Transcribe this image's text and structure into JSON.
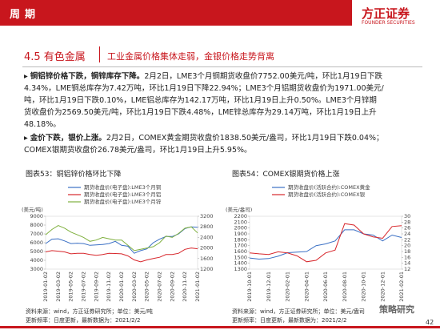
{
  "header": {
    "title": "周期",
    "logo": "方正证券",
    "logo_en": "FOUNDER SECURITIES"
  },
  "section": {
    "number": "4.5 有色金属",
    "headline": "工业金属价格集体走弱，金银价格走势背离"
  },
  "bullets": [
    {
      "lead": "铜铝锌价格下跌，铜锌库存下降。",
      "text": "2月2日，LME3个月铜期货收盘价7752.00美元/吨，环比1月19日下跌4.34%，LME铜总库存为7.42万吨，环比1月19日下降22.94%；LME3个月铝期货收盘价为1971.00美元/吨，环比1月19日下跌0.10%，LME铝总库存为142.17万吨，环比1月19日上升0.50%。LME3个月锌期货收盘价为2569.50美元/吨，环比1月19日下跌4.48%，LME锌总库存为29.14万吨，环比1月19日上升48.18%。"
    },
    {
      "lead": "金价下跌，银价上涨。",
      "text": "2月2日，COMEX黄金期货收盘价1838.50美元/盎司，环比1月19日下跌0.04%；COMEX银期货收盘价26.78美元/盎司，环比1月19日上升5.95%。"
    }
  ],
  "footer": {
    "sources": [
      "资料来源：wind，方正证券研究所；单位：美元/吨",
      "更新频率：日度更新，最新数据为：2021/2/2",
      "资料来源：wind，方正证券研究所；单位：美元/盎司",
      "更新频率：日度更新，最新数据为：2021/2/2"
    ],
    "page": "42",
    "watermark": "策略研究"
  },
  "chart_data": [
    {
      "type": "line",
      "title": "图表53：铜铝锌价格环比下降",
      "y_label": "(美元/吨)",
      "categories": [
        "2019-01-02",
        null,
        "2019-03-02",
        null,
        "2019-05-02",
        null,
        "2019-07-02",
        null,
        "2019-09-02",
        null,
        "2019-11-02",
        null,
        "2020-01-02",
        null,
        "2020-03-02",
        null,
        "2020-05-02",
        null,
        "2020-07-02",
        null,
        "2020-09-02",
        null,
        "2020-11-02",
        null,
        "2021-01-02"
      ],
      "series": [
        {
          "name": "期货收盘价(电子盘):LME3个月铜",
          "color": "#3a6fc4",
          "values": [
            5900,
            6400,
            6450,
            6200,
            5900,
            5950,
            5900,
            5700,
            5750,
            5800,
            5900,
            6150,
            5700,
            5600,
            4800,
            5100,
            5300,
            6000,
            6400,
            6700,
            6700,
            7000,
            7600,
            7800,
            7752
          ]
        },
        {
          "name": "期货收盘价(电子盘):LME3个月铝",
          "color": "#d7262b",
          "axis": "y2",
          "values": [
            1850,
            1900,
            1880,
            1850,
            1780,
            1800,
            1800,
            1750,
            1720,
            1750,
            1800,
            1790,
            1780,
            1700,
            1550,
            1480,
            1550,
            1600,
            1650,
            1750,
            1750,
            1800,
            1950,
            2000,
            1971
          ]
        },
        {
          "name": "期货收盘价(电子盘):LME3个月锌",
          "color": "#7fb03e",
          "axis": "y2",
          "values": [
            2500,
            2700,
            2850,
            2750,
            2600,
            2500,
            2400,
            2250,
            2300,
            2400,
            2350,
            2300,
            2300,
            2100,
            1900,
            1950,
            2000,
            2050,
            2200,
            2450,
            2400,
            2550,
            2750,
            2800,
            2569.5
          ]
        }
      ],
      "ylim": [
        3000,
        9000
      ],
      "yticks": [
        3000,
        4000,
        5000,
        6000,
        7000,
        8000,
        9000
      ],
      "y2lim": [
        1200,
        3200
      ],
      "y2ticks": [
        1200,
        1600,
        2000,
        2400,
        2800,
        3200
      ]
    },
    {
      "type": "line",
      "title": "图表54：COMEX银期货价格上涨",
      "y_label": "(美元/盎司)",
      "categories": [
        "2019-10-01",
        null,
        "2019-12-01",
        null,
        "2020-02-01",
        null,
        "2020-04-01",
        null,
        "2020-06-01",
        null,
        "2020-08-01",
        null,
        "2020-10-01",
        null,
        "2020-12-01",
        null,
        "2021-02-01"
      ],
      "series": [
        {
          "name": "期货收盘价(活跃合约):COMEX黄金",
          "color": "#3a6fc4",
          "values": [
            1490,
            1470,
            1480,
            1520,
            1580,
            1590,
            1600,
            1700,
            1730,
            1780,
            1970,
            1970,
            1900,
            1880,
            1780,
            1880,
            1838.5
          ]
        },
        {
          "name": "期货收盘价(活跃合约):COMEX银",
          "color": "#d7262b",
          "axis": "y2",
          "values": [
            17.5,
            17.2,
            17,
            17.9,
            17.5,
            16.5,
            14.5,
            15,
            17.5,
            18.5,
            27.5,
            27,
            24,
            23,
            22.5,
            26.5,
            26.78
          ]
        }
      ],
      "ylim": [
        1300,
        2200
      ],
      "yticks": [
        1300,
        1400,
        1500,
        1600,
        1700,
        1800,
        1900,
        2000,
        2100,
        2200
      ],
      "y2lim": [
        12,
        30
      ],
      "y2ticks": [
        12,
        14,
        16,
        18,
        20,
        22,
        24,
        26,
        28,
        30
      ]
    }
  ]
}
